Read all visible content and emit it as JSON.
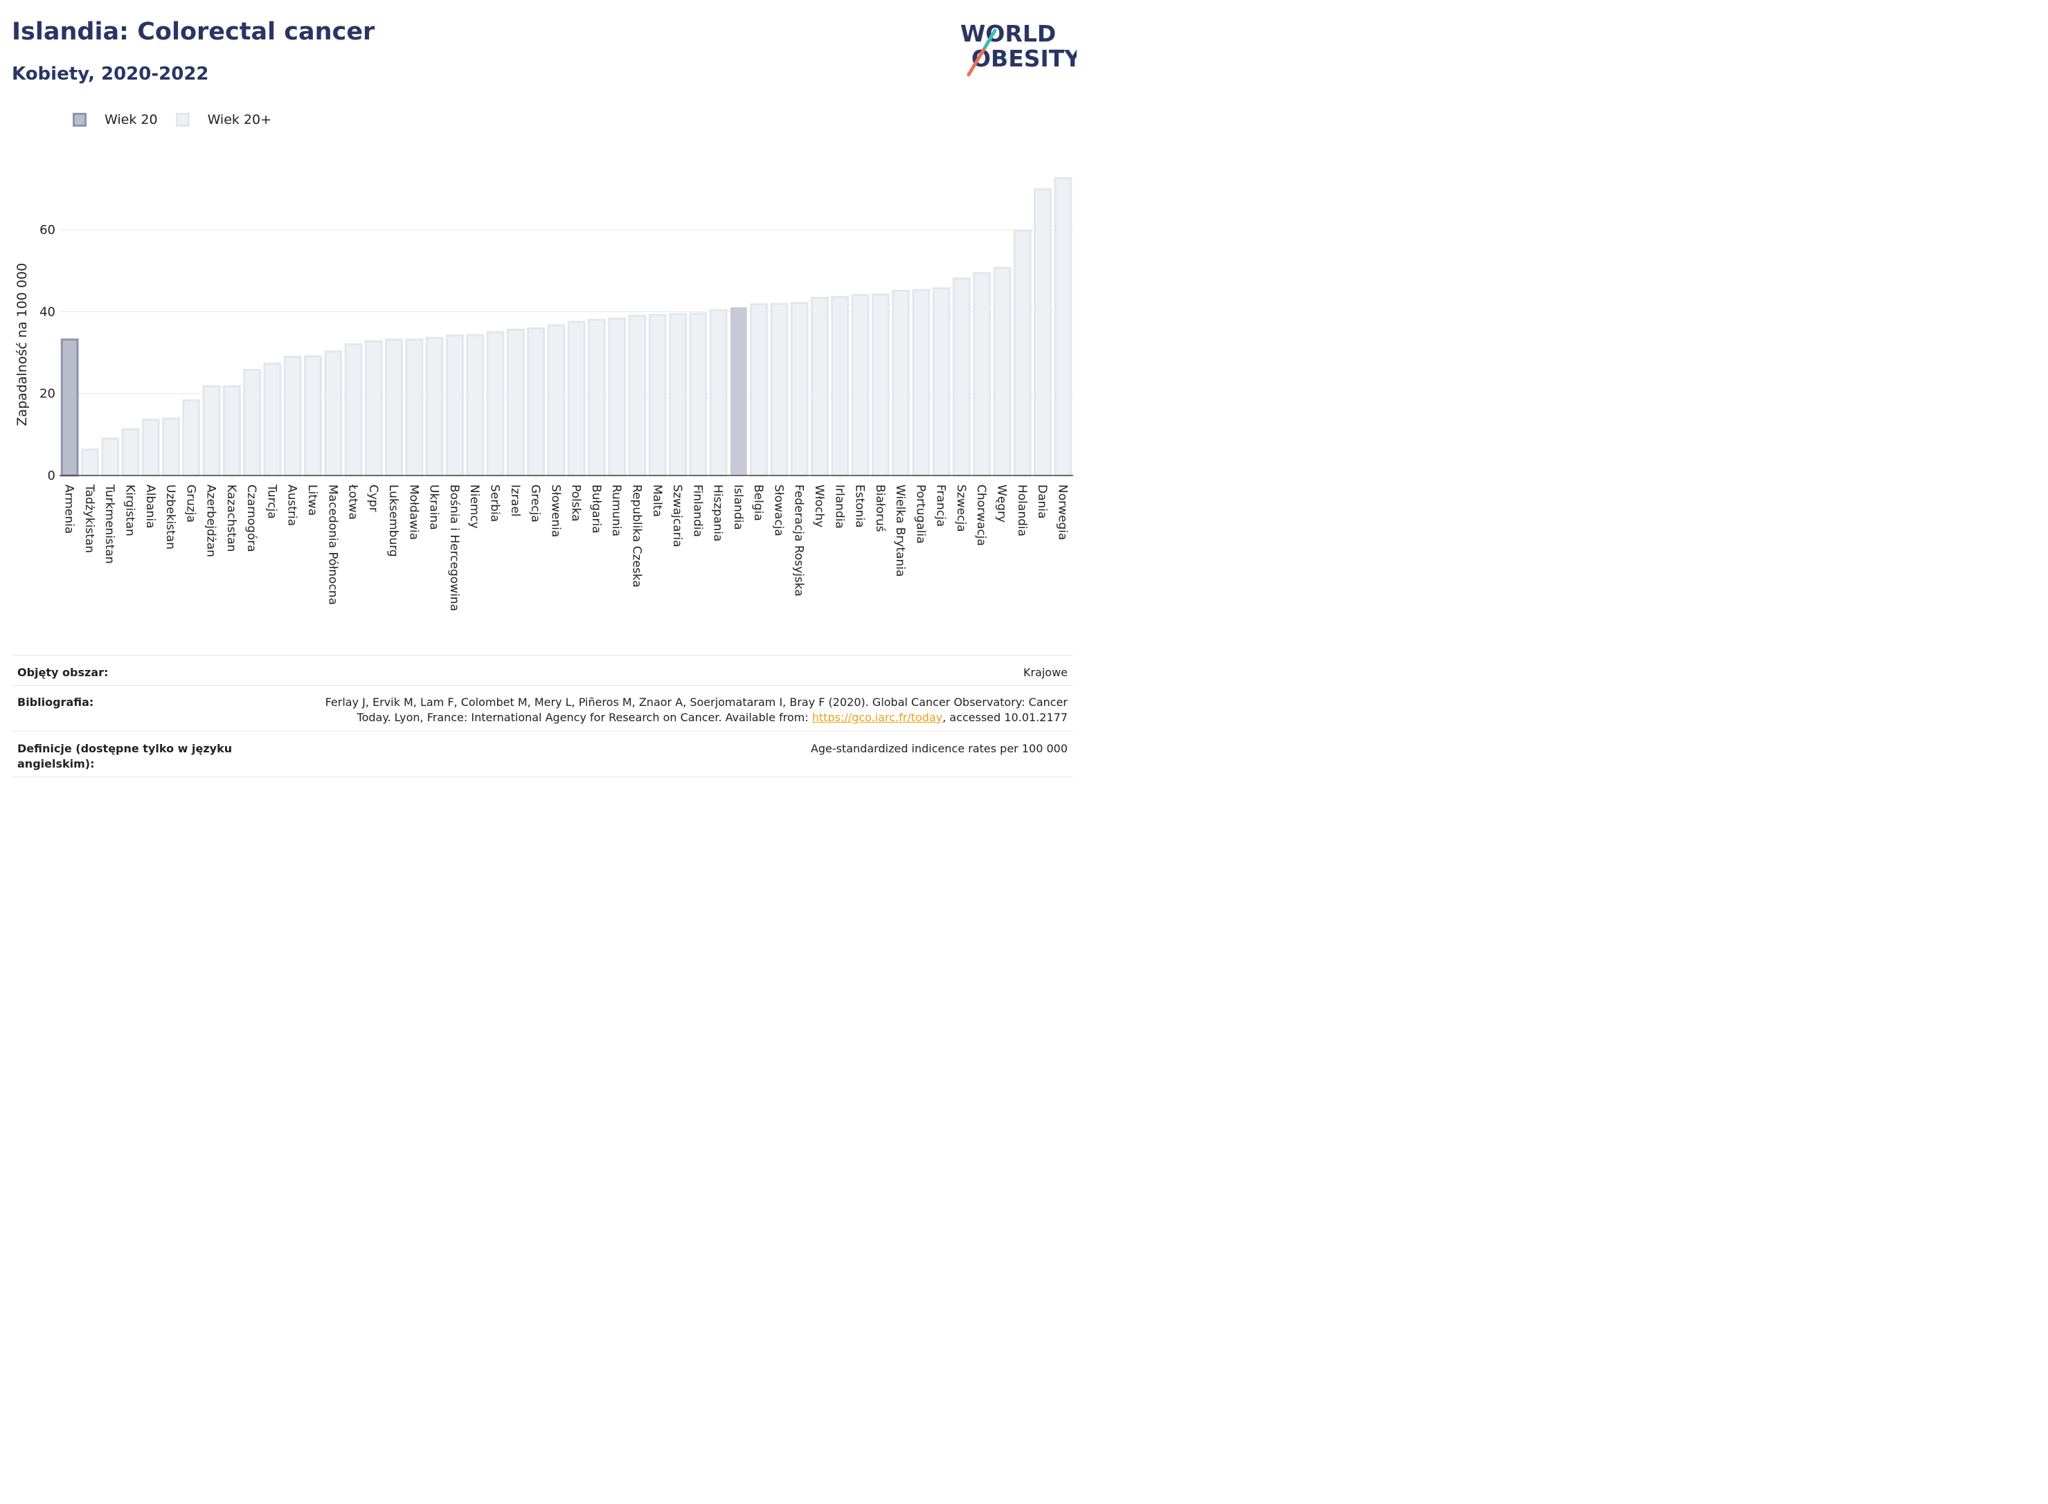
{
  "header": {
    "title": "Islandia: Colorectal cancer",
    "subtitle": "Kobiety, 2020-2022"
  },
  "logo": {
    "line1": "WORLD",
    "line2": "OBESITY"
  },
  "legend": [
    {
      "label": "Wiek 20",
      "color": "#b9bdcc"
    },
    {
      "label": "Wiek 20+",
      "color": "#eef0f4"
    }
  ],
  "chart_data": {
    "type": "bar",
    "ylabel": "Zapadalność na 100 000",
    "ylim": [
      0,
      75
    ],
    "yticks": [
      0,
      20,
      40,
      60
    ],
    "grid": true,
    "legend_placement": "top-left",
    "highlight": "Islandia",
    "categories": [
      "Armenia",
      "Tadżykistan",
      "Turkmenistan",
      "Kirgistan",
      "Albania",
      "Uzbekistan",
      "Gruzja",
      "Azerbejdżan",
      "Kazachstan",
      "Czarnogóra",
      "Turcja",
      "Austria",
      "Litwa",
      "Macedonia Północna",
      "Łotwa",
      "Cypr",
      "Luksemburg",
      "Mołdawia",
      "Ukraina",
      "Bośnia i Hercegowina",
      "Niemcy",
      "Serbia",
      "Izrael",
      "Grecja",
      "Słowenia",
      "Polska",
      "Bułgaria",
      "Rumunia",
      "Republika Czeska",
      "Malta",
      "Szwajcaria",
      "Finlandia",
      "Hiszpania",
      "Islandia",
      "Belgia",
      "Słowacja",
      "Federacja Rosyjska",
      "Włochy",
      "Irlandia",
      "Estonia",
      "Białoruś",
      "Wielka Brytania",
      "Portugalia",
      "Francja",
      "Szwecja",
      "Chorwacja",
      "Węgry",
      "Holandia",
      "Dania",
      "Norwegia"
    ],
    "series": [
      {
        "name": "Wiek 20+",
        "values": [
          33.2,
          6.3,
          9.0,
          11.3,
          13.6,
          13.9,
          18.3,
          21.8,
          21.8,
          25.8,
          27.3,
          29.0,
          29.1,
          30.3,
          32.0,
          32.8,
          33.2,
          33.2,
          33.6,
          34.2,
          34.3,
          35.0,
          35.6,
          35.9,
          36.7,
          37.5,
          38.0,
          38.3,
          39.0,
          39.2,
          39.4,
          39.5,
          40.4,
          41.0,
          41.8,
          41.9,
          42.1,
          43.4,
          43.6,
          44.1,
          44.2,
          45.1,
          45.3,
          45.7,
          48.1,
          49.4,
          50.7,
          59.8,
          69.9,
          72.6
        ]
      }
    ]
  },
  "footer": {
    "coverage_label": "Objęty obszar:",
    "coverage_value": "Krajowe",
    "bibliography_label": "Bibliografia:",
    "bibliography_line1": "Ferlay J, Ervik M, Lam F, Colombet M, Mery L, Piñeros M, Znaor A, Soerjomataram I, Bray F (2020). Global Cancer Observatory: Cancer",
    "bibliography_line2_pre": "Today. Lyon, France: International Agency for Research on Cancer. Available from: ",
    "bibliography_link": "https://gco.iarc.fr/today",
    "bibliography_line2_post": ", accessed 10.01.2177",
    "definitions_label_line1": "Definicje (dostępne tylko w języku",
    "definitions_label_line2": "angielskim):",
    "definitions_value": "Age-standardized indicence rates per 100 000"
  }
}
